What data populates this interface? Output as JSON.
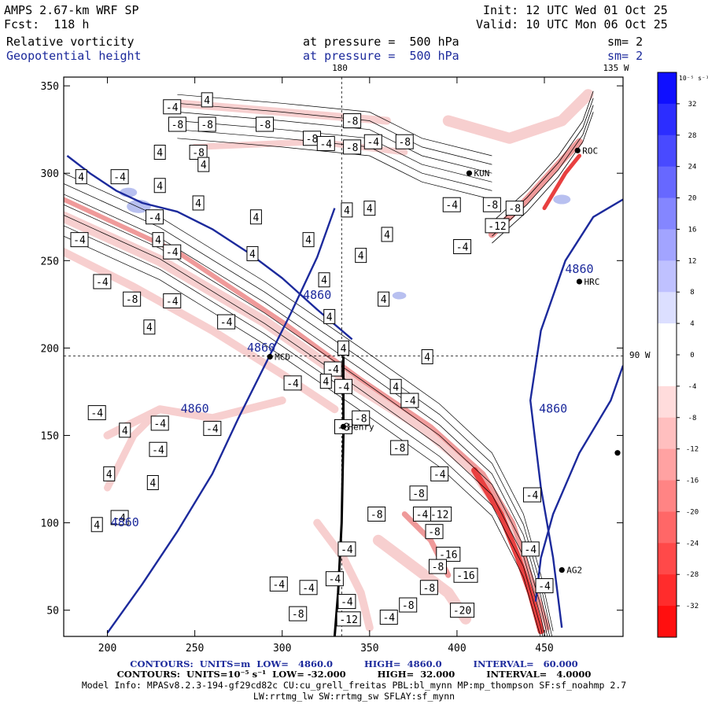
{
  "header": {
    "model": "AMPS 2.67-km WRF SP",
    "forecast": "Fcst:  118 h",
    "init": "Init: 12 UTC Wed 01 Oct 25",
    "valid": "Valid: 10 UTC Mon 06 Oct 25",
    "field1": "Relative vorticity",
    "field1_level": "at pressure =  500 hPa",
    "field1_sm": "sm= 2",
    "field2": "Geopotential height",
    "field2_level": "at pressure =  500 hPa",
    "field2_sm": "sm= 2"
  },
  "map_labels": {
    "lon_180": "180",
    "lon_135w": "135 W",
    "lon_90w": "90 W"
  },
  "stations": [
    {
      "id": "ROC",
      "x": 469,
      "y": 313
    },
    {
      "id": "KUN",
      "x": 407,
      "y": 300
    },
    {
      "id": "HRC",
      "x": 470,
      "y": 238
    },
    {
      "id": "MCD",
      "x": 293,
      "y": 195
    },
    {
      "id": "Henry",
      "x": 335,
      "y": 155
    },
    {
      "id": "AG2",
      "x": 460,
      "y": 73
    }
  ],
  "chart_data": {
    "type": "contour",
    "title": "Relative vorticity (shaded/contours) and Geopotential height at 500 hPa",
    "xlim": [
      175,
      495
    ],
    "ylim": [
      35,
      355
    ],
    "xticks": [
      200,
      250,
      300,
      350,
      400,
      450
    ],
    "yticks": [
      50,
      100,
      150,
      200,
      250,
      300,
      350
    ],
    "colorbar": {
      "unit_label": "10⁻⁵ s⁻¹",
      "min": -36,
      "max": 36,
      "step": 4,
      "tick_labels": [
        "32",
        "28",
        "24",
        "20",
        "16",
        "12",
        "8",
        "4",
        "0",
        "-4",
        "-8",
        "-12",
        "-16",
        "-20",
        "-24",
        "-28",
        "-32"
      ]
    },
    "height_contours": {
      "value": 4860,
      "label": "4860",
      "lines": [
        [
          [
            200,
            37
          ],
          [
            220,
            65
          ],
          [
            240,
            95
          ],
          [
            260,
            128
          ],
          [
            275,
            160
          ],
          [
            290,
            190
          ],
          [
            305,
            220
          ],
          [
            320,
            252
          ],
          [
            330,
            280
          ]
        ],
        [
          [
            177,
            310
          ],
          [
            190,
            300
          ],
          [
            205,
            290
          ],
          [
            220,
            283
          ],
          [
            240,
            278
          ],
          [
            260,
            268
          ],
          [
            280,
            255
          ],
          [
            300,
            240
          ],
          [
            320,
            222
          ],
          [
            340,
            205
          ]
        ],
        [
          [
            460,
            40
          ],
          [
            455,
            80
          ],
          [
            448,
            120
          ],
          [
            442,
            170
          ],
          [
            448,
            210
          ],
          [
            462,
            250
          ],
          [
            478,
            275
          ],
          [
            495,
            285
          ]
        ],
        [
          [
            495,
            190
          ],
          [
            488,
            170
          ],
          [
            470,
            140
          ],
          [
            455,
            105
          ],
          [
            448,
            80
          ],
          [
            445,
            55
          ]
        ]
      ],
      "label_positions": [
        [
          210,
          100
        ],
        [
          288,
          200
        ],
        [
          250,
          165
        ],
        [
          320,
          230
        ],
        [
          470,
          245
        ],
        [
          455,
          165
        ]
      ]
    },
    "vorticity_labels": [
      [
        "-4",
        237,
        338
      ],
      [
        "4",
        257,
        342
      ],
      [
        "-8",
        240,
        328
      ],
      [
        "-8",
        257,
        328
      ],
      [
        "-8",
        290,
        328
      ],
      [
        "-8",
        340,
        330
      ],
      [
        "-8",
        317,
        320
      ],
      [
        "-4",
        325,
        317
      ],
      [
        "-8",
        340,
        315
      ],
      [
        "-4",
        352,
        318
      ],
      [
        "-8",
        370,
        318
      ],
      [
        "-8",
        252,
        312
      ],
      [
        "4",
        230,
        312
      ],
      [
        "4",
        255,
        305
      ],
      [
        "4",
        185,
        298
      ],
      [
        "-4",
        207,
        298
      ],
      [
        "4",
        230,
        293
      ],
      [
        "-4",
        397,
        282
      ],
      [
        "-8",
        420,
        282
      ],
      [
        "-8",
        433,
        280
      ],
      [
        "-12",
        423,
        270
      ],
      [
        "4",
        252,
        283
      ],
      [
        "4",
        337,
        279
      ],
      [
        "4",
        350,
        280
      ],
      [
        "4",
        285,
        275
      ],
      [
        "-4",
        227,
        275
      ],
      [
        "-4",
        184,
        262
      ],
      [
        "4",
        229,
        262
      ],
      [
        "4",
        315,
        262
      ],
      [
        "4",
        360,
        265
      ],
      [
        "-4",
        403,
        258
      ],
      [
        "-4",
        237,
        255
      ],
      [
        "4",
        283,
        254
      ],
      [
        "4",
        345,
        253
      ],
      [
        "-4",
        197,
        238
      ],
      [
        "4",
        324,
        239
      ],
      [
        "-8",
        214,
        228
      ],
      [
        "-4",
        237,
        227
      ],
      [
        "4",
        358,
        228
      ],
      [
        "4",
        327,
        218
      ],
      [
        "-4",
        268,
        215
      ],
      [
        "4",
        224,
        212
      ],
      [
        "4",
        335,
        200
      ],
      [
        "4",
        383,
        195
      ],
      [
        "-4",
        329,
        188
      ],
      [
        "-4",
        306,
        180
      ],
      [
        "4",
        325,
        181
      ],
      [
        "4",
        365,
        178
      ],
      [
        "-4",
        335,
        178
      ],
      [
        "-4",
        373,
        170
      ],
      [
        "-8",
        345,
        160
      ],
      [
        "-4",
        194,
        163
      ],
      [
        "-4",
        230,
        157
      ],
      [
        "-4",
        260,
        154
      ],
      [
        "-8",
        335,
        155
      ],
      [
        "4",
        210,
        153
      ],
      [
        "-4",
        229,
        142
      ],
      [
        "-8",
        367,
        143
      ],
      [
        "-4",
        390,
        128
      ],
      [
        "-8",
        378,
        117
      ],
      [
        "4",
        226,
        123
      ],
      [
        "4",
        201,
        128
      ],
      [
        "-4",
        443,
        116
      ],
      [
        "-12",
        390,
        105
      ],
      [
        "-8",
        354,
        105
      ],
      [
        "-4",
        380,
        105
      ],
      [
        "-4",
        207,
        103
      ],
      [
        "4",
        194,
        99
      ],
      [
        "-8",
        387,
        95
      ],
      [
        "-16",
        395,
        82
      ],
      [
        "-8",
        389,
        75
      ],
      [
        "-4",
        442,
        85
      ],
      [
        "-4",
        337,
        85
      ],
      [
        "-4",
        330,
        68
      ],
      [
        "-16",
        405,
        70
      ],
      [
        "-4",
        298,
        65
      ],
      [
        "-4",
        315,
        63
      ],
      [
        "-8",
        384,
        63
      ],
      [
        "-4",
        450,
        64
      ],
      [
        "-8",
        372,
        53
      ],
      [
        "-4",
        337,
        55
      ],
      [
        "-20",
        403,
        50
      ],
      [
        "-8",
        309,
        48
      ],
      [
        "-12",
        338,
        45
      ],
      [
        "-4",
        361,
        46
      ]
    ]
  },
  "footer": {
    "line1": "CONTOURS:  UNITS=m  LOW=   4860.0          HIGH=  4860.0          INTERVAL=   60.000",
    "line2": "CONTOURS:  UNITS=10⁻⁵ s⁻¹  LOW= -32.000          HIGH=  32.000          INTERVAL=   4.0000",
    "line3": "Model Info: MPASv8.2.3-194-gf29cd82c CU:cu_grell_freitas PBL:bl_mynn MP:mp_thompson SF:sf_noahmp 2.7",
    "line4": "LW:rrtmg_lw SW:rrtmg_sw SFLAY:sf_mynn"
  },
  "colors": {
    "height_line": "#1c2a9c",
    "pos_light": "#b8c0f0",
    "neg_light": "#f7cfcf",
    "neg_mid": "#ef9a9a",
    "neg_strong": "#e84040"
  }
}
